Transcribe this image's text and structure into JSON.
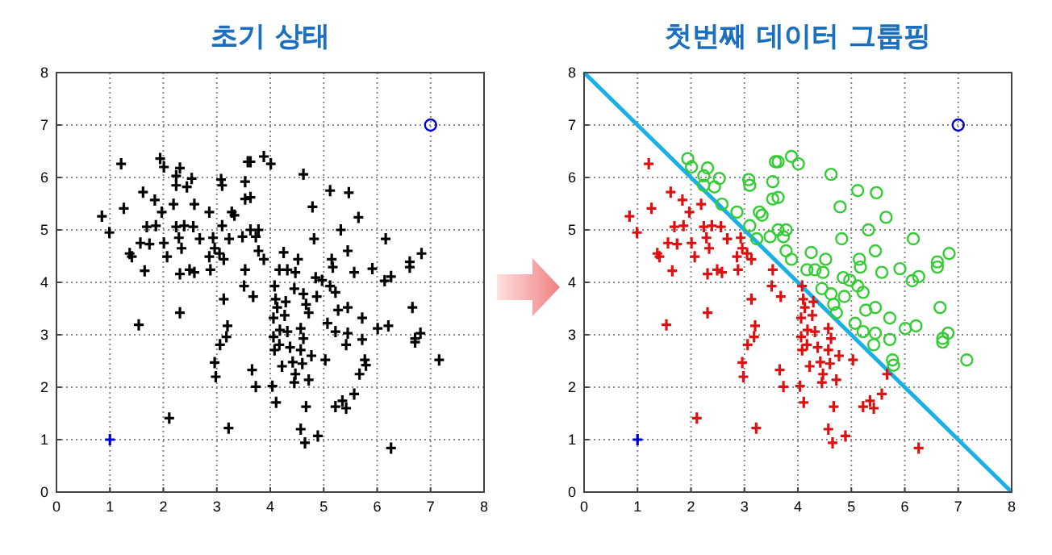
{
  "chart_data": [
    {
      "type": "scatter",
      "title": "초기 상태",
      "xlim": [
        0,
        8
      ],
      "ylim": [
        0,
        8
      ],
      "xticks": [
        0,
        1,
        2,
        3,
        4,
        5,
        6,
        7,
        8
      ],
      "yticks": [
        0,
        1,
        2,
        3,
        4,
        5,
        6,
        7,
        8
      ],
      "grid": true,
      "series": [
        {
          "color": "#000000",
          "marker": "cross",
          "x": [
            1.21,
            0.85,
            0.99,
            1.26,
            1.62,
            1.84,
            1.97,
            2.19,
            1.86,
            2.01,
            1.69,
            1.57,
            1.74,
            1.37,
            1.41,
            1.65,
            2.07,
            2.24,
            2.29,
            2.39,
            2.34,
            2.31,
            2.49,
            2.58,
            2.68,
            2.56,
            2.86,
            2.93,
            2.88,
            3.13,
            2.96,
            3.05,
            2.31,
            1.54,
            3.13,
            3.2,
            3.18,
            3.06,
            2.96,
            2.11,
            3.22,
            3.53,
            3.51,
            3.68,
            3.66,
            3.73,
            4.08,
            4.1,
            4.13,
            4.06,
            4.18,
            4.06,
            4.08,
            4.17,
            4.29,
            4.27,
            4.32,
            4.37,
            4.22,
            4.42,
            4.47,
            4.45,
            4.57,
            4.62,
            4.57,
            4.6,
            4.77,
            4.72,
            4.04,
            4.11,
            4.67,
            4.57,
            4.65,
            4.89,
            5.03,
            5.22,
            5.35,
            5.42,
            5.57,
            5.67,
            6.26,
            2.98,
            1.94,
            2.01,
            2.31,
            2.24,
            2.53,
            2.24,
            2.44,
            2.58,
            2.86,
            3.08,
            3.1,
            3.28,
            3.33,
            3.1,
            3.23,
            3.53,
            3.58,
            3.63,
            3.53,
            3.63,
            3.48,
            3.73,
            3.78,
            3.63,
            3.78,
            3.88,
            3.88,
            4.01,
            4.25,
            4.17,
            4.32,
            4.47,
            4.52,
            4.45,
            4.62,
            4.79,
            4.82,
            4.85,
            4.62,
            4.67,
            4.72,
            4.87,
            4.97,
            5.12,
            5.22,
            5.07,
            5.22,
            5.27,
            5.12,
            5.47,
            5.32,
            5.15,
            5.17,
            5.45,
            5.45,
            5.45,
            5.42,
            5.57,
            5.65,
            5.72,
            5.72,
            5.77,
            5.79,
            5.91,
            6.01,
            6.14,
            6.26,
            6.16,
            6.21,
            6.61,
            6.61,
            6.66,
            6.71,
            6.71,
            6.81,
            6.83,
            7.16
          ],
          "values": [
            6.26,
            5.26,
            4.95,
            5.41,
            5.72,
            5.57,
            5.34,
            5.49,
            5.08,
            4.75,
            5.06,
            4.75,
            4.73,
            4.55,
            4.49,
            4.22,
            4.49,
            5.06,
            4.85,
            5.08,
            4.65,
            4.16,
            4.24,
            4.19,
            4.83,
            5.06,
            4.49,
            4.85,
            4.24,
            4.44,
            4.65,
            4.55,
            3.42,
            3.19,
            3.68,
            3.17,
            2.96,
            2.81,
            2.47,
            1.41,
            1.22,
            4.24,
            3.93,
            3.73,
            2.33,
            2.01,
            3.93,
            3.68,
            3.52,
            3.32,
            3.09,
            2.96,
            2.71,
            2.81,
            3.63,
            3.37,
            3.06,
            2.76,
            2.4,
            2.48,
            2.25,
            2.09,
            3.12,
            2.93,
            2.71,
            2.45,
            2.6,
            2.14,
            2.02,
            1.71,
            1.63,
            1.2,
            0.94,
            1.07,
            2.52,
            1.63,
            1.74,
            1.6,
            1.87,
            2.25,
            0.84,
            2.2,
            6.36,
            6.2,
            6.18,
            6.03,
            5.98,
            5.85,
            5.82,
            5.49,
            5.34,
            5.96,
            5.85,
            5.34,
            5.28,
            5.08,
            4.83,
            5.92,
            6.3,
            6.3,
            5.59,
            5.62,
            4.87,
            4.87,
            5.0,
            5.0,
            4.6,
            4.44,
            6.4,
            6.26,
            4.57,
            4.24,
            4.24,
            4.19,
            4.44,
            3.88,
            6.06,
            5.44,
            4.83,
            4.09,
            3.78,
            3.58,
            3.42,
            3.73,
            4.04,
            3.93,
            3.81,
            3.22,
            3.06,
            3.47,
            5.75,
            5.71,
            5.0,
            4.44,
            4.29,
            4.6,
            3.52,
            3.03,
            2.81,
            4.19,
            5.24,
            3.32,
            2.91,
            2.52,
            2.42,
            4.26,
            3.12,
            4.03,
            4.11,
            4.83,
            3.17,
            4.39,
            4.29,
            3.52,
            2.93,
            2.86,
            3.03,
            4.55,
            2.52
          ]
        },
        {
          "color": "#0000cc",
          "marker": "cross",
          "x": [
            1
          ],
          "values": [
            1
          ]
        },
        {
          "color": "#0000cc",
          "marker": "circle",
          "x": [
            7
          ],
          "values": [
            7
          ]
        }
      ]
    },
    {
      "type": "scatter",
      "title": "첫번째 데이터 그룹핑",
      "xlim": [
        0,
        8
      ],
      "ylim": [
        0,
        8
      ],
      "xticks": [
        0,
        1,
        2,
        3,
        4,
        5,
        6,
        7,
        8
      ],
      "yticks": [
        0,
        1,
        2,
        3,
        4,
        5,
        6,
        7,
        8
      ],
      "grid": true,
      "series": [
        {
          "type": "line",
          "color": "#1ab0e6",
          "marker": "none",
          "x": [
            0,
            8
          ],
          "values": [
            8,
            0
          ]
        },
        {
          "color": "#dd1111",
          "marker": "cross",
          "x": [
            1.21,
            0.85,
            0.99,
            1.26,
            1.62,
            1.84,
            1.97,
            2.19,
            1.86,
            2.01,
            1.69,
            1.57,
            1.74,
            1.37,
            1.41,
            1.65,
            2.07,
            2.24,
            2.29,
            2.39,
            2.34,
            2.31,
            2.49,
            2.58,
            2.68,
            2.56,
            2.86,
            2.93,
            2.88,
            3.13,
            2.96,
            3.05,
            2.31,
            1.54,
            3.13,
            3.2,
            3.18,
            3.06,
            2.96,
            2.11,
            3.22,
            3.53,
            3.51,
            3.68,
            3.66,
            3.73,
            4.08,
            4.1,
            4.13,
            4.06,
            4.18,
            4.06,
            4.08,
            4.17,
            4.29,
            4.27,
            4.32,
            4.37,
            4.22,
            4.42,
            4.47,
            4.45,
            4.57,
            4.62,
            4.57,
            4.6,
            4.77,
            4.72,
            4.04,
            4.11,
            4.67,
            4.57,
            4.65,
            4.89,
            5.03,
            5.22,
            5.35,
            5.42,
            5.57,
            5.67,
            6.26,
            2.98
          ],
          "values": [
            6.26,
            5.26,
            4.95,
            5.41,
            5.72,
            5.57,
            5.34,
            5.49,
            5.08,
            4.75,
            5.06,
            4.75,
            4.73,
            4.55,
            4.49,
            4.22,
            4.49,
            5.06,
            4.85,
            5.08,
            4.65,
            4.16,
            4.24,
            4.19,
            4.83,
            5.06,
            4.49,
            4.85,
            4.24,
            4.44,
            4.65,
            4.55,
            3.42,
            3.19,
            3.68,
            3.17,
            2.96,
            2.81,
            2.47,
            1.41,
            1.22,
            4.24,
            3.93,
            3.73,
            2.33,
            2.01,
            3.93,
            3.68,
            3.52,
            3.32,
            3.09,
            2.96,
            2.71,
            2.81,
            3.63,
            3.37,
            3.06,
            2.76,
            2.4,
            2.48,
            2.25,
            2.09,
            3.12,
            2.93,
            2.71,
            2.45,
            2.6,
            2.14,
            2.02,
            1.71,
            1.63,
            1.2,
            0.94,
            1.07,
            2.52,
            1.63,
            1.74,
            1.6,
            1.87,
            2.25,
            0.84,
            2.2
          ]
        },
        {
          "color": "#33cc33",
          "marker": "circle",
          "x": [
            1.94,
            2.01,
            2.31,
            2.24,
            2.53,
            2.24,
            2.44,
            2.58,
            2.86,
            3.08,
            3.1,
            3.28,
            3.33,
            3.1,
            3.23,
            3.53,
            3.58,
            3.63,
            3.53,
            3.63,
            3.48,
            3.73,
            3.78,
            3.63,
            3.78,
            3.88,
            3.88,
            4.01,
            4.25,
            4.17,
            4.32,
            4.47,
            4.52,
            4.45,
            4.62,
            4.79,
            4.82,
            4.85,
            4.62,
            4.67,
            4.72,
            4.87,
            4.97,
            5.12,
            5.22,
            5.07,
            5.22,
            5.27,
            5.12,
            5.47,
            5.32,
            5.15,
            5.17,
            5.45,
            5.45,
            5.45,
            5.42,
            5.57,
            5.65,
            5.72,
            5.72,
            5.77,
            5.79,
            5.91,
            6.01,
            6.14,
            6.26,
            6.16,
            6.21,
            6.61,
            6.61,
            6.66,
            6.71,
            6.71,
            6.81,
            6.83,
            7.16
          ],
          "values": [
            6.36,
            6.2,
            6.18,
            6.03,
            5.98,
            5.85,
            5.82,
            5.49,
            5.34,
            5.96,
            5.85,
            5.34,
            5.28,
            5.08,
            4.83,
            5.92,
            6.3,
            6.3,
            5.59,
            5.62,
            4.87,
            4.87,
            5.0,
            5.0,
            4.6,
            4.44,
            6.4,
            6.26,
            4.57,
            4.24,
            4.24,
            4.19,
            4.44,
            3.88,
            6.06,
            5.44,
            4.83,
            4.09,
            3.78,
            3.58,
            3.42,
            3.73,
            4.04,
            3.93,
            3.81,
            3.22,
            3.06,
            3.47,
            5.75,
            5.71,
            5.0,
            4.44,
            4.29,
            4.6,
            3.52,
            3.03,
            2.81,
            4.19,
            5.24,
            3.32,
            2.91,
            2.52,
            2.42,
            4.26,
            3.12,
            4.03,
            4.11,
            4.83,
            3.17,
            4.39,
            4.29,
            3.52,
            2.93,
            2.86,
            3.03,
            4.55,
            2.52
          ]
        },
        {
          "color": "#0000cc",
          "marker": "cross",
          "x": [
            1
          ],
          "values": [
            1
          ]
        },
        {
          "color": "#0000cc",
          "marker": "circle",
          "x": [
            7
          ],
          "values": [
            7
          ]
        }
      ]
    }
  ]
}
